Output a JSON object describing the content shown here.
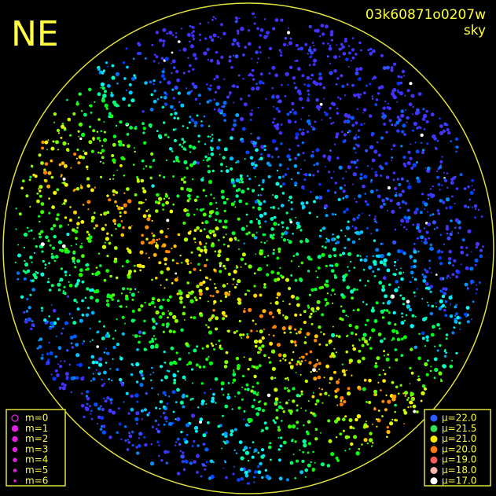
{
  "corner_label": "NE",
  "header": {
    "frame_id": "03k60871o0207w",
    "mode": "sky"
  },
  "magnitude_legend": [
    "m=0",
    "m=1",
    "m=2",
    "m=3",
    "m=4",
    "m=5",
    "m=6"
  ],
  "brightness_legend": [
    "μ=22.0",
    "μ=21.5",
    "μ=21.0",
    "μ=20.0",
    "μ=19.0",
    "μ=18.0",
    "μ=17.0"
  ]
}
